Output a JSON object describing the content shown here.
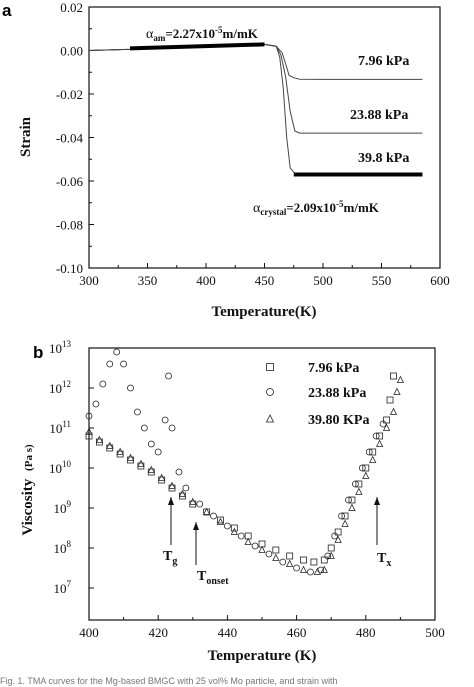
{
  "chart_data": [
    {
      "panel": "a",
      "type": "line",
      "xlabel": "Temperature(K)",
      "ylabel": "Strain",
      "xlim": [
        300,
        600
      ],
      "ylim": [
        -0.1,
        0.02
      ],
      "xticks": [
        "300",
        "350",
        "400",
        "450",
        "500",
        "550",
        "600"
      ],
      "yticks": [
        "0.02",
        "0.00",
        "-0.02",
        "-0.04",
        "-0.06",
        "-0.08",
        "-0.10"
      ],
      "grid": false,
      "series": [
        {
          "name": "7.96 kPa",
          "x": [
            300,
            340,
            380,
            420,
            450,
            460,
            465,
            468,
            471,
            475,
            480,
            500,
            540,
            585
          ],
          "y": [
            0.0,
            0.0006,
            0.0014,
            0.0022,
            0.0028,
            0.002,
            -0.001,
            -0.006,
            -0.0115,
            -0.0125,
            -0.0132,
            -0.0133,
            -0.0133,
            -0.0133
          ]
        },
        {
          "name": "23.88 kPa",
          "x": [
            300,
            340,
            380,
            420,
            450,
            460,
            464,
            468,
            472,
            476,
            480,
            500,
            540,
            585
          ],
          "y": [
            0.0,
            0.0006,
            0.0014,
            0.0022,
            0.0028,
            0.002,
            -0.002,
            -0.012,
            -0.028,
            -0.037,
            -0.038,
            -0.038,
            -0.038,
            -0.038
          ]
        },
        {
          "name": "39.8 kPa",
          "x": [
            300,
            340,
            380,
            420,
            450,
            460,
            463,
            466,
            469,
            472,
            476,
            480,
            500,
            540,
            585
          ],
          "y": [
            0.0,
            0.0006,
            0.0014,
            0.0022,
            0.0028,
            0.002,
            -0.003,
            -0.017,
            -0.04,
            -0.054,
            -0.0565,
            -0.057,
            -0.057,
            -0.057,
            -0.057
          ]
        }
      ],
      "fit_lines": [
        {
          "label_main": "α",
          "label_sub": "am",
          "label_value": "=2.27x10",
          "label_exp": "-5",
          "label_unit": "m/mK",
          "x": [
            335,
            450
          ],
          "y": [
            0.001,
            0.0028
          ]
        },
        {
          "label_main": "α",
          "label_sub": "crystal",
          "label_value": "=2.09x10",
          "label_exp": "-5",
          "label_unit": "m/mK",
          "x": [
            475,
            585
          ],
          "y": [
            -0.057,
            -0.057
          ]
        }
      ]
    },
    {
      "panel": "b",
      "type": "scatter",
      "xlabel": "Temperature (K)",
      "ylabel": "Viscosity",
      "ylabel_unit": "(Pa s)",
      "xlim": [
        400,
        500
      ],
      "ylim_log10": [
        6.2,
        13
      ],
      "yscale": "log",
      "xticks": [
        "400",
        "420",
        "440",
        "460",
        "480",
        "500"
      ],
      "yticks_exp": [
        "7",
        "8",
        "9",
        "10",
        "11",
        "12",
        "13"
      ],
      "ytick_base": "10",
      "grid": false,
      "legend_position": "top-right",
      "series": [
        {
          "name": "7.96 kPa",
          "marker": "square",
          "x": [
            400,
            403,
            406,
            409,
            412,
            415,
            418,
            421,
            424,
            427,
            430,
            434,
            438,
            442,
            446,
            450,
            454,
            458,
            462,
            465,
            468,
            470,
            472,
            474,
            476,
            478,
            480,
            482,
            484,
            486,
            487,
            488
          ],
          "log10_y": [
            10.8,
            10.65,
            10.5,
            10.35,
            10.2,
            10.05,
            9.9,
            9.7,
            9.5,
            9.3,
            9.1,
            8.9,
            8.7,
            8.5,
            8.3,
            8.1,
            7.95,
            7.8,
            7.7,
            7.65,
            7.7,
            8.0,
            8.4,
            8.8,
            9.2,
            9.6,
            10.0,
            10.4,
            10.8,
            11.2,
            11.7,
            12.3
          ]
        },
        {
          "name": "23.88 kPa",
          "marker": "circle",
          "x": [
            400,
            402,
            404,
            406,
            408,
            410,
            412,
            414,
            416,
            418,
            420,
            422,
            423,
            424,
            426,
            428,
            432,
            436,
            440,
            444,
            448,
            452,
            456,
            460,
            464,
            467,
            469,
            471,
            473,
            475,
            477,
            479,
            481,
            483,
            485
          ],
          "log10_y": [
            11.3,
            11.6,
            12.1,
            12.6,
            12.9,
            12.6,
            12.0,
            11.4,
            11.0,
            10.6,
            10.4,
            11.2,
            12.3,
            11.0,
            9.9,
            9.5,
            9.1,
            8.8,
            8.55,
            8.3,
            8.05,
            7.85,
            7.65,
            7.5,
            7.4,
            7.45,
            7.8,
            8.3,
            8.8,
            9.2,
            9.6,
            10.0,
            10.4,
            10.8,
            11.1
          ]
        },
        {
          "name": "39.80 KPa",
          "marker": "triangle",
          "x": [
            400,
            403,
            406,
            409,
            412,
            415,
            418,
            421,
            424,
            427,
            430,
            434,
            438,
            442,
            446,
            450,
            454,
            458,
            462,
            466,
            468,
            470,
            472,
            474,
            476,
            478,
            480,
            482,
            484,
            486,
            488,
            489,
            490
          ],
          "log10_y": [
            10.9,
            10.7,
            10.55,
            10.4,
            10.25,
            10.1,
            9.95,
            9.75,
            9.55,
            9.35,
            9.15,
            8.9,
            8.65,
            8.4,
            8.15,
            7.95,
            7.75,
            7.6,
            7.45,
            7.4,
            7.45,
            7.8,
            8.2,
            8.6,
            9.0,
            9.4,
            9.8,
            10.2,
            10.6,
            11.0,
            11.4,
            11.9,
            12.2
          ]
        }
      ],
      "annotations": [
        {
          "text": "T",
          "sub": "g",
          "x": 423
        },
        {
          "text": "T",
          "sub": "onset",
          "x": 431
        },
        {
          "text": "T",
          "sub": "x",
          "x": 481
        }
      ]
    }
  ],
  "caption_fragment": "Fig. 1. TMA curves for the Mg-based BMGC with 25 vol% Mo particle, and strain with"
}
